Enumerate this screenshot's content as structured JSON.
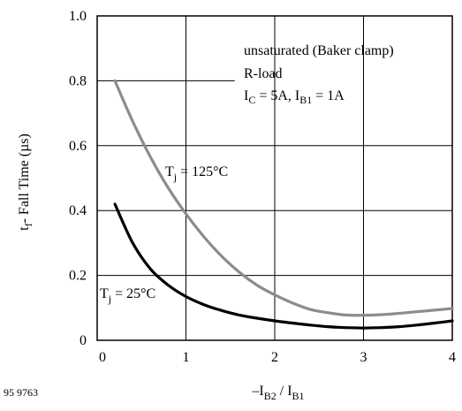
{
  "figure_id": "95 9763",
  "chart_data": {
    "type": "line",
    "xlabel": {
      "main": "–I",
      "sub1": "B2",
      "mid": " / I",
      "sub2": "B1"
    },
    "ylabel": {
      "main": "t",
      "sub": "f",
      "rest": "- Fall Time  (µs)"
    },
    "xlim": [
      0,
      4
    ],
    "ylim": [
      0,
      1.0
    ],
    "x_ticks": [
      "0",
      "1",
      "2",
      "3",
      "4"
    ],
    "y_ticks": [
      "0",
      "0.2",
      "0.4",
      "0.6",
      "0.8",
      "1.0"
    ],
    "grid": true,
    "annotations": {
      "line1": "unsaturated (Baker clamp)",
      "line2": "R-load",
      "line3": {
        "a": "I",
        "a_sub": "C",
        "b": " = 5A, I",
        "b_sub": "B1",
        "c": " = 1A"
      }
    },
    "series": [
      {
        "name": "Tj = 125°C",
        "label": {
          "main": "T",
          "sub": "j",
          "rest": " = 125°C"
        },
        "color": "#8c8c8c",
        "x": [
          0.2,
          0.4,
          0.6,
          0.8,
          1.0,
          1.2,
          1.4,
          1.6,
          1.8,
          2.0,
          2.2,
          2.4,
          2.6,
          2.8,
          3.0,
          3.2,
          3.4,
          3.6,
          3.8,
          4.0
        ],
        "y": [
          0.8,
          0.675,
          0.565,
          0.47,
          0.39,
          0.32,
          0.26,
          0.21,
          0.17,
          0.14,
          0.115,
          0.095,
          0.085,
          0.078,
          0.077,
          0.079,
          0.083,
          0.088,
          0.093,
          0.098
        ]
      },
      {
        "name": "Tj = 25°C",
        "label": {
          "main": "T",
          "sub": "j",
          "rest": " = 25°C"
        },
        "color": "#000000",
        "x": [
          0.2,
          0.4,
          0.6,
          0.8,
          1.0,
          1.2,
          1.4,
          1.6,
          1.8,
          2.0,
          2.2,
          2.4,
          2.6,
          2.8,
          3.0,
          3.2,
          3.4,
          3.6,
          3.8,
          4.0
        ],
        "y": [
          0.42,
          0.3,
          0.22,
          0.17,
          0.135,
          0.11,
          0.092,
          0.078,
          0.068,
          0.06,
          0.053,
          0.047,
          0.042,
          0.039,
          0.038,
          0.039,
          0.042,
          0.047,
          0.053,
          0.06
        ]
      }
    ]
  }
}
